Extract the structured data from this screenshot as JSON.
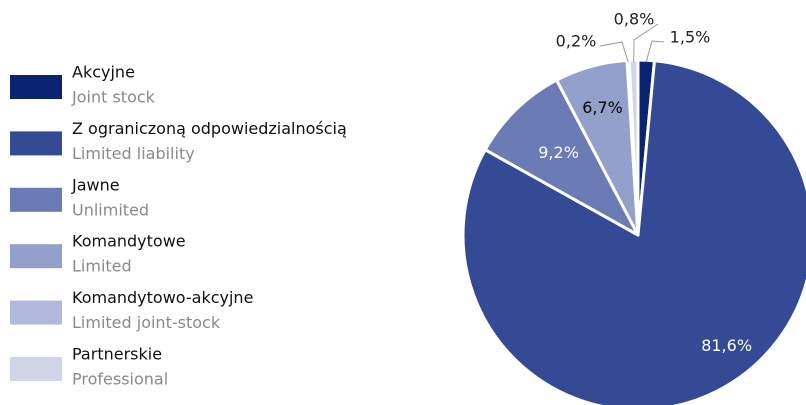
{
  "chart_data": {
    "type": "pie",
    "categories": [
      "Akcyjne",
      "Z ograniczoną odpowiedzialnością",
      "Jawne",
      "Komandytowe",
      "Komandytowo-akcyjne",
      "Partnerskie"
    ],
    "category_subtitles": [
      "Joint stock",
      "Limited liability",
      "Unlimited",
      "Limited",
      "Limited joint-stock",
      "Professional"
    ],
    "values": [
      1.5,
      81.6,
      9.2,
      6.7,
      0.2,
      0.8
    ],
    "value_labels": [
      "1,5%",
      "81,6%",
      "9,2%",
      "6,7%",
      "0,2%",
      "0,8%"
    ],
    "colors": [
      "#0a2472",
      "#344a94",
      "#6a7bb5",
      "#93a0cc",
      "#b0b9dc",
      "#d0d5ea"
    ],
    "legend": "left"
  }
}
